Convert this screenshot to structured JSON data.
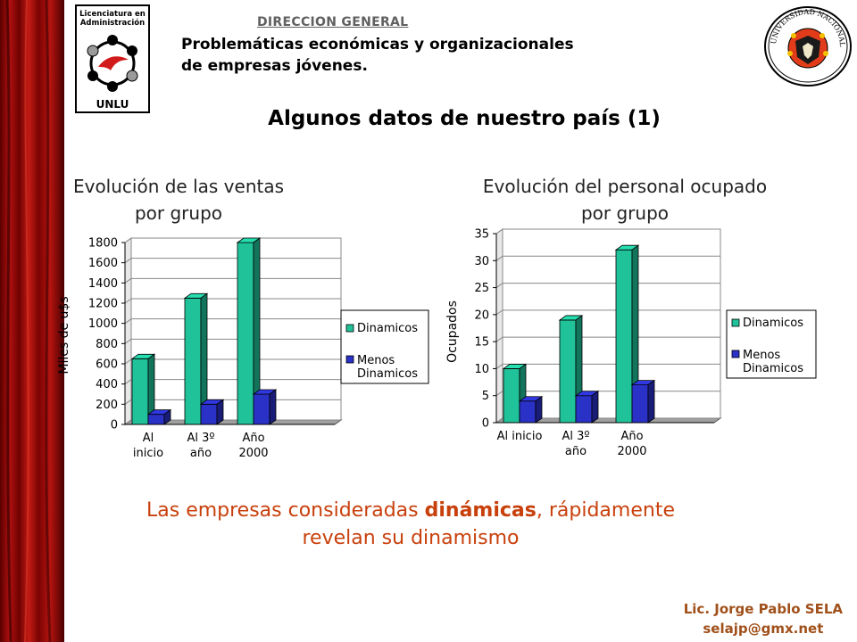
{
  "header": {
    "org": "DIRECCION GENERAL",
    "subtitle_line1": "Problemáticas económicas y organizacionales",
    "subtitle_line2": "de empresas jóvenes.",
    "logo_left_text_line1": "Licenciatura en",
    "logo_left_text_line2": "Administración",
    "logo_left_text_line3": "UNLU",
    "logo_right_text": "UNIVERSIDAD NACIONAL DE LUJAN"
  },
  "slide_title": "Algunos datos de nuestro país (1)",
  "chart_data": [
    {
      "type": "bar",
      "title_line1": "Evolución de las ventas",
      "title_line2": "por grupo",
      "ylabel": "Miles de u$s",
      "ylim": [
        0,
        1800
      ],
      "yticks": [
        0,
        200,
        400,
        600,
        800,
        1000,
        1200,
        1400,
        1600,
        1800
      ],
      "categories": [
        [
          "Al",
          "inicio"
        ],
        [
          "Al 3º",
          "año"
        ],
        [
          "Año",
          "2000"
        ]
      ],
      "series": [
        {
          "name": "Dinamicos",
          "legend_lines": [
            "Dinamicos"
          ],
          "color": "#20c29a",
          "values": [
            650,
            1250,
            1800
          ]
        },
        {
          "name": "Menos Dinamicos",
          "legend_lines": [
            "Menos",
            "Dinamicos"
          ],
          "color": "#2a31c6",
          "values": [
            100,
            200,
            300
          ]
        }
      ],
      "grid": true,
      "legend": "right"
    },
    {
      "type": "bar",
      "title_line1": "Evolución del personal ocupado",
      "title_line2": "por grupo",
      "ylabel": "Ocupados",
      "ylim": [
        0,
        35
      ],
      "yticks": [
        0,
        5,
        10,
        15,
        20,
        25,
        30,
        35
      ],
      "categories": [
        [
          "Al inicio"
        ],
        [
          "Al 3º",
          "año"
        ],
        [
          "Año",
          "2000"
        ]
      ],
      "series": [
        {
          "name": "Dinamicos",
          "legend_lines": [
            "Dinamicos"
          ],
          "color": "#20c29a",
          "values": [
            10,
            19,
            32
          ]
        },
        {
          "name": "Menos Dinamicos",
          "legend_lines": [
            "Menos",
            "Dinamicos"
          ],
          "color": "#2a31c6",
          "values": [
            4,
            5,
            7
          ]
        }
      ],
      "grid": true,
      "legend": "right"
    }
  ],
  "conclusion": {
    "before": "Las empresas consideradas ",
    "bold": "dinámicas",
    "after_line1": ", rápidamente",
    "line2": "revelan su dinamismo"
  },
  "author": {
    "name": "Lic. Jorge Pablo SELA",
    "email": "selajp@gmx.net"
  }
}
